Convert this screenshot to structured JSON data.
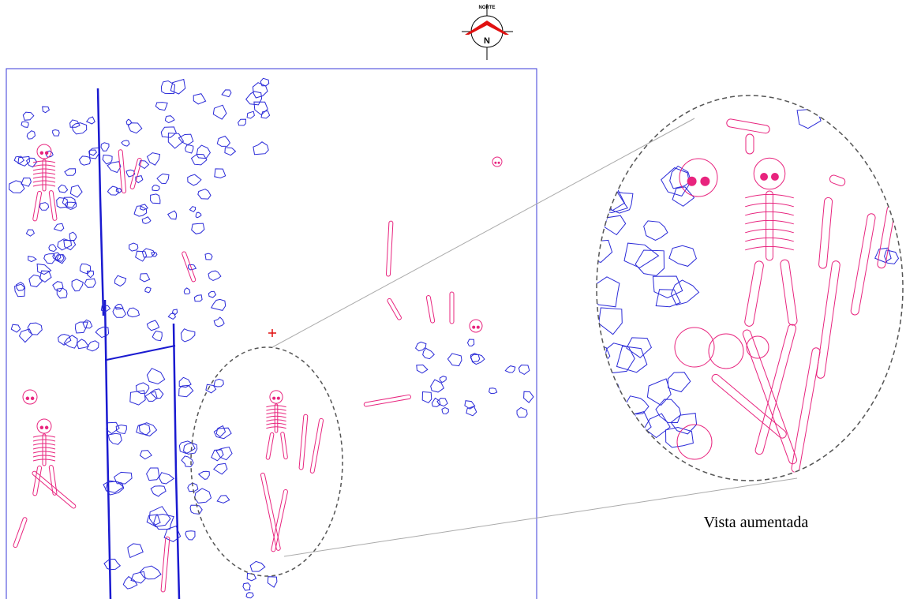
{
  "compass": {
    "label": "NORTE",
    "letter": "N"
  },
  "inset": {
    "caption": "Vista aumentada"
  }
}
